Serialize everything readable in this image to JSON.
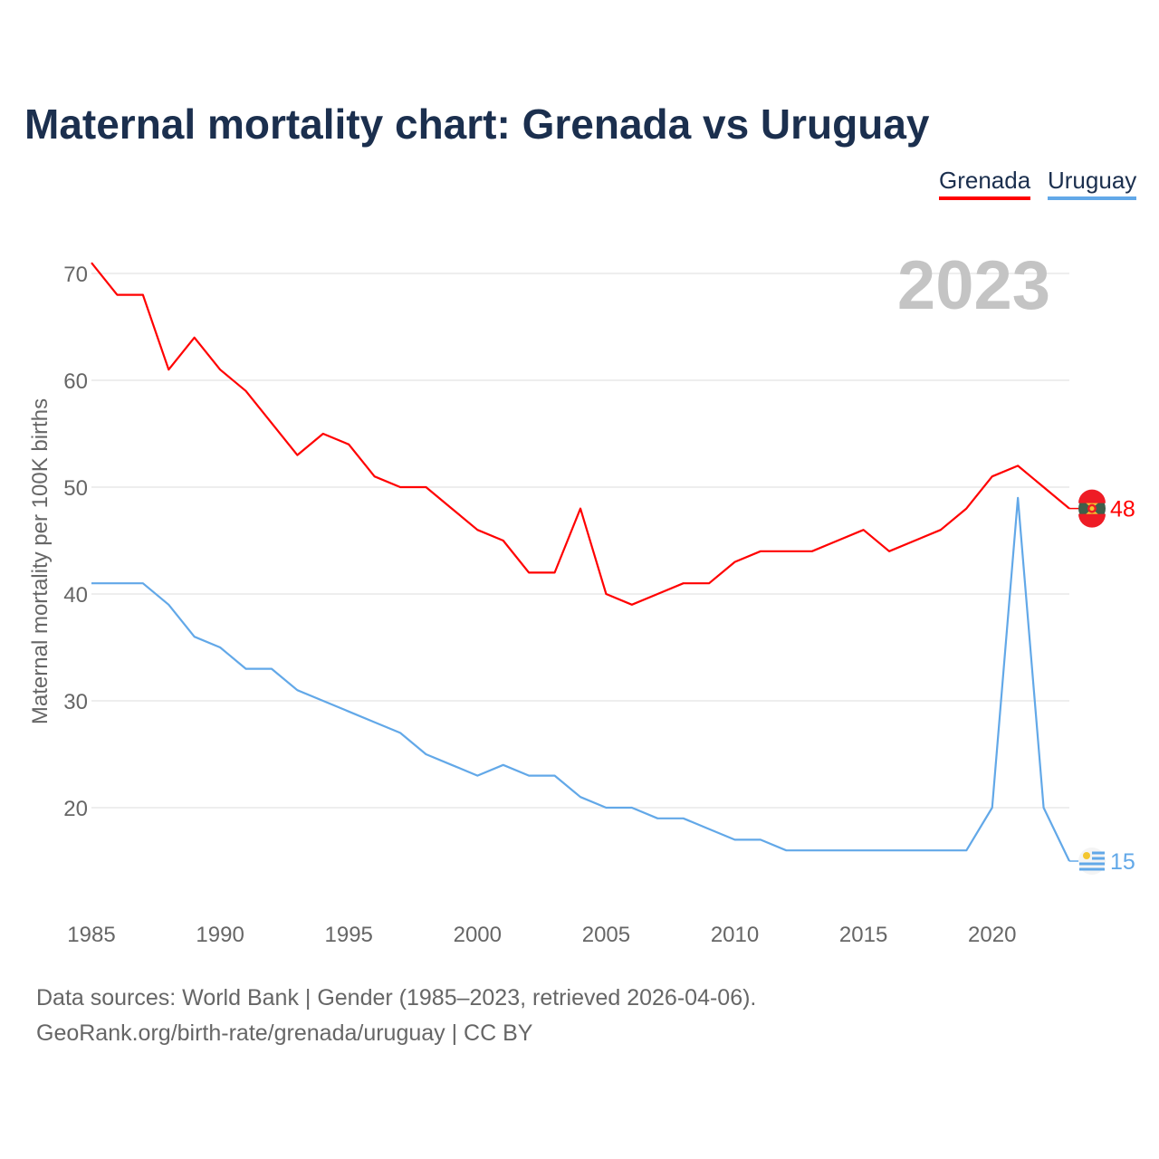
{
  "chart_data": {
    "type": "line",
    "title": "Maternal mortality chart: Grenada vs Uruguay",
    "ylabel": "Maternal mortality per 100K births",
    "xlabel": "",
    "year_watermark": "2023",
    "xlim": [
      1985,
      2023
    ],
    "ylim": [
      12,
      72
    ],
    "yticks": [
      20,
      30,
      40,
      50,
      60,
      70
    ],
    "xticks": [
      1985,
      1990,
      1995,
      2000,
      2005,
      2010,
      2015,
      2020
    ],
    "grid": true,
    "legend_position": "top-right",
    "x": [
      1985,
      1986,
      1987,
      1988,
      1989,
      1990,
      1991,
      1992,
      1993,
      1994,
      1995,
      1996,
      1997,
      1998,
      1999,
      2000,
      2001,
      2002,
      2003,
      2004,
      2005,
      2006,
      2007,
      2008,
      2009,
      2010,
      2011,
      2012,
      2013,
      2014,
      2015,
      2016,
      2017,
      2018,
      2019,
      2020,
      2021,
      2022,
      2023
    ],
    "series": [
      {
        "name": "Grenada",
        "color": "#ff0000",
        "end_label": "48",
        "values": [
          71,
          68,
          68,
          61,
          64,
          61,
          59,
          56,
          53,
          55,
          54,
          51,
          50,
          50,
          48,
          46,
          45,
          42,
          42,
          48,
          40,
          39,
          40,
          41,
          41,
          43,
          44,
          44,
          44,
          45,
          46,
          44,
          45,
          46,
          48,
          51,
          52,
          50,
          48
        ]
      },
      {
        "name": "Uruguay",
        "color": "#62a8e8",
        "end_label": "15",
        "values": [
          41,
          41,
          41,
          39,
          36,
          35,
          33,
          33,
          31,
          30,
          29,
          28,
          27,
          25,
          24,
          23,
          24,
          23,
          23,
          21,
          20,
          20,
          19,
          19,
          18,
          17,
          17,
          16,
          16,
          16,
          16,
          16,
          16,
          16,
          16,
          20,
          49,
          20,
          15
        ]
      }
    ]
  },
  "footer": {
    "line1": "Data sources: World Bank | Gender (1985–2023, retrieved 2026-04-06).",
    "line2": "GeoRank.org/birth-rate/grenada/uruguay | CC BY"
  }
}
